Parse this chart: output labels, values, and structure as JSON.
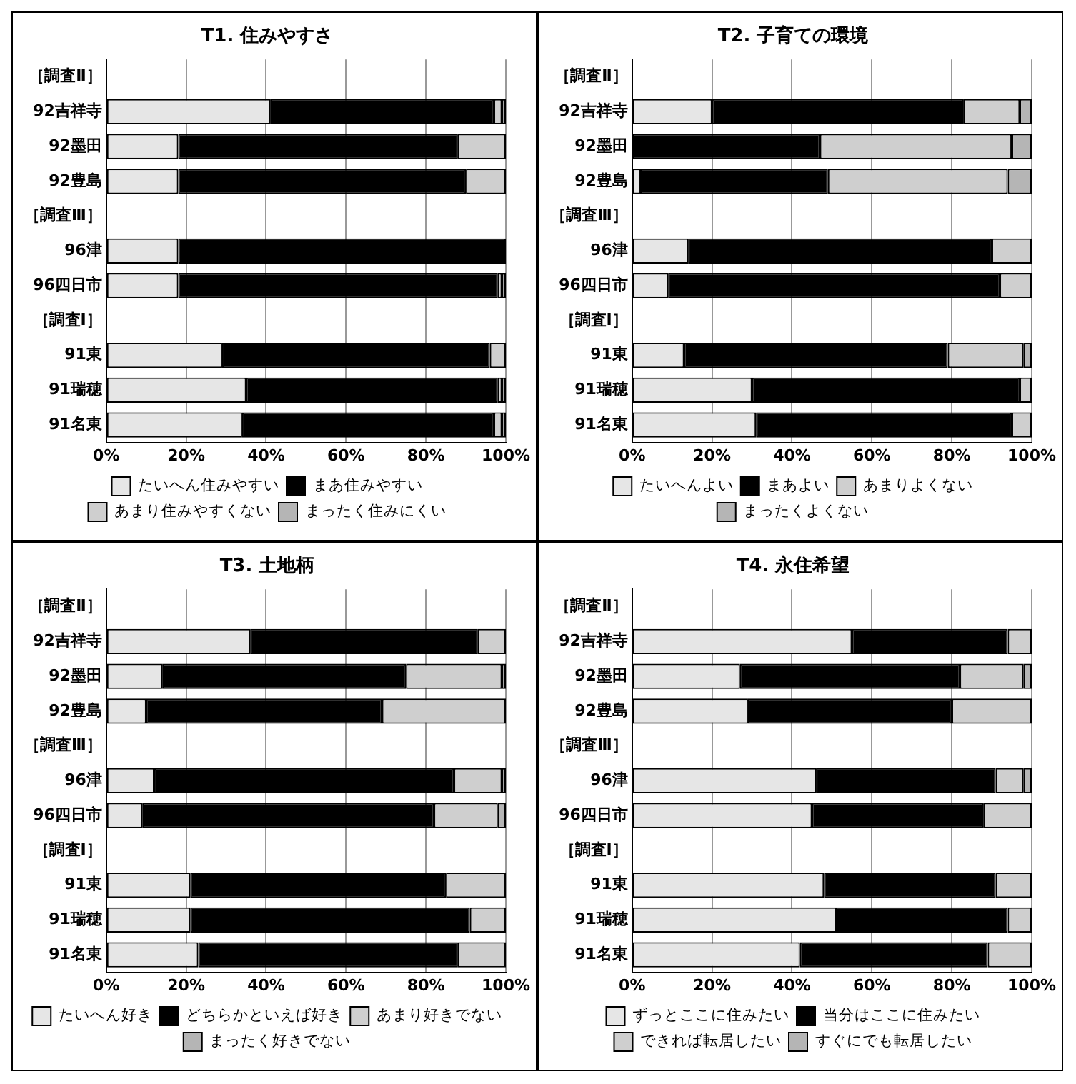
{
  "chart_data": [
    {
      "type": "bar",
      "title": "T1. 住みやすさ",
      "orientation": "horizontal",
      "stacked": true,
      "categories": [
        "［調査Ⅱ］",
        "92吉祥寺",
        "92墨田",
        "92豊島",
        "［調査Ⅲ］",
        "96津",
        "96四日市",
        "［調査Ⅰ］",
        "91東",
        "91瑞穂",
        "91名東"
      ],
      "xlim": [
        0,
        100
      ],
      "xticks": [
        {
          "value": 0,
          "label": "0%"
        },
        {
          "value": 20,
          "label": "20%"
        },
        {
          "value": 40,
          "label": "40%"
        },
        {
          "value": 60,
          "label": "60%"
        },
        {
          "value": 80,
          "label": "80%"
        },
        {
          "value": 100,
          "label": "100%"
        }
      ],
      "grid": "x",
      "legend": "bottom",
      "series": [
        {
          "name": "たいへん住みやすい",
          "color": "#e6e6e6",
          "values": [
            null,
            41,
            18,
            18,
            null,
            18,
            18,
            null,
            29,
            35,
            34
          ]
        },
        {
          "name": "まあ住みやすい",
          "color": "#000000",
          "values": [
            null,
            56,
            70,
            72,
            null,
            82,
            80,
            null,
            67,
            63,
            63
          ]
        },
        {
          "name": "あまり住みやすくない",
          "color": "#cfcfcf",
          "values": [
            null,
            2,
            12,
            10,
            null,
            0,
            1,
            null,
            4,
            1,
            2
          ]
        },
        {
          "name": "まったく住みにくい",
          "color": "#b5b5b5",
          "values": [
            null,
            1,
            0,
            0,
            null,
            0,
            1,
            null,
            0,
            1,
            1
          ]
        }
      ]
    },
    {
      "type": "bar",
      "title": "T2. 子育ての環境",
      "orientation": "horizontal",
      "stacked": true,
      "categories": [
        "［調査Ⅱ］",
        "92吉祥寺",
        "92墨田",
        "92豊島",
        "［調査Ⅲ］",
        "96津",
        "96四日市",
        "［調査Ⅰ］",
        "91東",
        "91瑞穂",
        "91名東"
      ],
      "xlim": [
        0,
        100
      ],
      "xticks": [
        {
          "value": 0,
          "label": "0%"
        },
        {
          "value": 20,
          "label": "20%"
        },
        {
          "value": 40,
          "label": "40%"
        },
        {
          "value": 60,
          "label": "60%"
        },
        {
          "value": 80,
          "label": "80%"
        },
        {
          "value": 100,
          "label": "100%"
        }
      ],
      "grid": "x",
      "legend": "bottom",
      "series": [
        {
          "name": "たいへんよい",
          "color": "#e6e6e6",
          "values": [
            null,
            20,
            0,
            2,
            null,
            14,
            9,
            null,
            13,
            30,
            31
          ]
        },
        {
          "name": "まあよい",
          "color": "#000000",
          "values": [
            null,
            63,
            47,
            47,
            null,
            76,
            83,
            null,
            66,
            67,
            64
          ]
        },
        {
          "name": "あまりよくない",
          "color": "#cfcfcf",
          "values": [
            null,
            14,
            48,
            45,
            null,
            10,
            8,
            null,
            19,
            3,
            5
          ]
        },
        {
          "name": "まったくよくない",
          "color": "#b5b5b5",
          "values": [
            null,
            3,
            5,
            6,
            null,
            0,
            0,
            null,
            2,
            0,
            0
          ]
        }
      ]
    },
    {
      "type": "bar",
      "title": "T3. 土地柄",
      "orientation": "horizontal",
      "stacked": true,
      "categories": [
        "［調査Ⅱ］",
        "92吉祥寺",
        "92墨田",
        "92豊島",
        "［調査Ⅲ］",
        "96津",
        "96四日市",
        "［調査Ⅰ］",
        "91東",
        "91瑞穂",
        "91名東"
      ],
      "xlim": [
        0,
        100
      ],
      "xticks": [
        {
          "value": 0,
          "label": "0%"
        },
        {
          "value": 20,
          "label": "20%"
        },
        {
          "value": 40,
          "label": "40%"
        },
        {
          "value": 60,
          "label": "60%"
        },
        {
          "value": 80,
          "label": "80%"
        },
        {
          "value": 100,
          "label": "100%"
        }
      ],
      "grid": "x",
      "legend": "bottom",
      "series": [
        {
          "name": "たいへん好き",
          "color": "#e6e6e6",
          "values": [
            null,
            36,
            14,
            10,
            null,
            12,
            9,
            null,
            21,
            21,
            23
          ]
        },
        {
          "name": "どちらかといえば好き",
          "color": "#000000",
          "values": [
            null,
            57,
            61,
            59,
            null,
            75,
            73,
            null,
            64,
            70,
            65
          ]
        },
        {
          "name": "あまり好きでない",
          "color": "#cfcfcf",
          "values": [
            null,
            7,
            24,
            31,
            null,
            12,
            16,
            null,
            15,
            9,
            12
          ]
        },
        {
          "name": "まったく好きでない",
          "color": "#b5b5b5",
          "values": [
            null,
            0,
            1,
            0,
            null,
            1,
            2,
            null,
            0,
            0,
            0
          ]
        }
      ]
    },
    {
      "type": "bar",
      "title": "T4. 永住希望",
      "orientation": "horizontal",
      "stacked": true,
      "categories": [
        "［調査Ⅱ］",
        "92吉祥寺",
        "92墨田",
        "92豊島",
        "［調査Ⅲ］",
        "96津",
        "96四日市",
        "［調査Ⅰ］",
        "91東",
        "91瑞穂",
        "91名東"
      ],
      "xlim": [
        0,
        100
      ],
      "xticks": [
        {
          "value": 0,
          "label": "0%"
        },
        {
          "value": 20,
          "label": "20%"
        },
        {
          "value": 40,
          "label": "40%"
        },
        {
          "value": 60,
          "label": "60%"
        },
        {
          "value": 80,
          "label": "80%"
        },
        {
          "value": 100,
          "label": "100%"
        }
      ],
      "grid": "x",
      "legend": "bottom",
      "series": [
        {
          "name": "ずっとここに住みたい",
          "color": "#e6e6e6",
          "values": [
            null,
            55,
            27,
            29,
            null,
            46,
            45,
            null,
            48,
            51,
            42
          ]
        },
        {
          "name": "当分はここに住みたい",
          "color": "#000000",
          "values": [
            null,
            39,
            55,
            51,
            null,
            45,
            43,
            null,
            43,
            43,
            47
          ]
        },
        {
          "name": "できれば転居したい",
          "color": "#cfcfcf",
          "values": [
            null,
            6,
            16,
            20,
            null,
            7,
            12,
            null,
            9,
            6,
            11
          ]
        },
        {
          "name": "すぐにでも転居したい",
          "color": "#b5b5b5",
          "values": [
            null,
            0,
            2,
            0,
            null,
            2,
            0,
            null,
            0,
            0,
            0
          ]
        }
      ]
    }
  ]
}
